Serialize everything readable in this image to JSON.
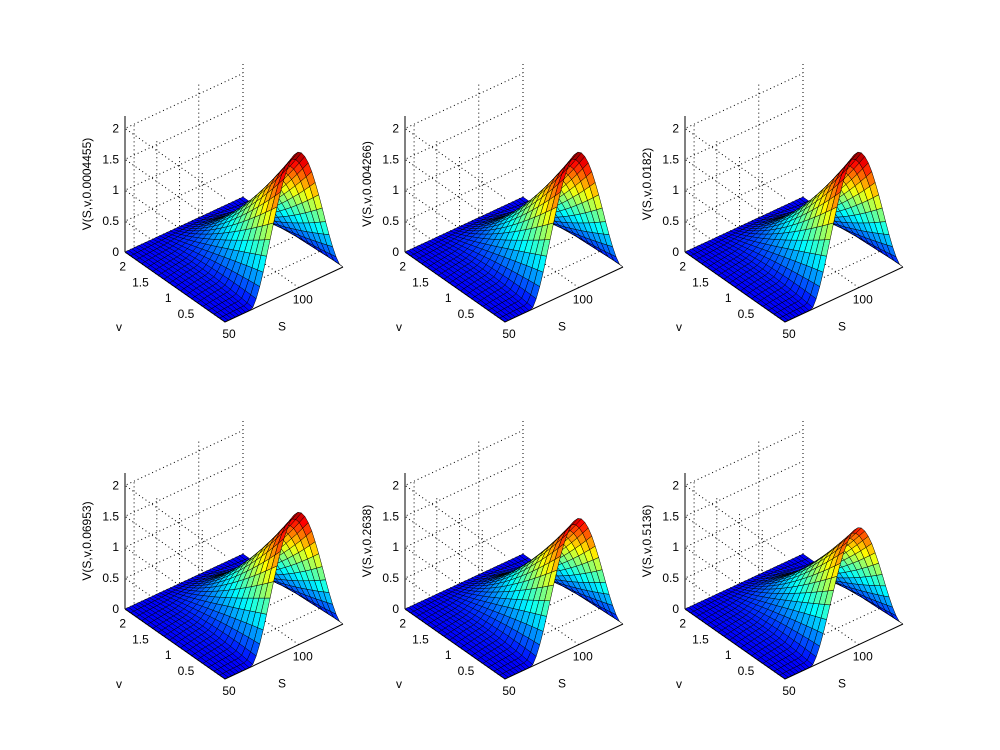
{
  "chart_data": [
    {
      "type": "surface3d",
      "zlabel": "V(S,v,0.0004455)",
      "xlabel": "S",
      "ylabel": "v",
      "x_ticks": [
        "50",
        "100"
      ],
      "y_ticks": [
        "0.5",
        "1",
        "1.5",
        "2"
      ],
      "z_ticks": [
        "0",
        "0.5",
        "1",
        "1.5",
        "2"
      ],
      "xlim": [
        50,
        130
      ],
      "ylim": [
        0,
        2.2
      ],
      "zlim": [
        0,
        2.2
      ],
      "peak": 2.2,
      "colormap": "jet"
    },
    {
      "type": "surface3d",
      "zlabel": "V(S,v,0.004266)",
      "xlabel": "S",
      "ylabel": "v",
      "x_ticks": [
        "50",
        "100"
      ],
      "y_ticks": [
        "0.5",
        "1",
        "1.5",
        "2"
      ],
      "z_ticks": [
        "0",
        "0.5",
        "1",
        "1.5",
        "2"
      ],
      "xlim": [
        50,
        130
      ],
      "ylim": [
        0,
        2.2
      ],
      "zlim": [
        0,
        2.2
      ],
      "peak": 2.2,
      "colormap": "jet"
    },
    {
      "type": "surface3d",
      "zlabel": "V(S,v,0.0182)",
      "xlabel": "S",
      "ylabel": "v",
      "x_ticks": [
        "50",
        "100"
      ],
      "y_ticks": [
        "0.5",
        "1",
        "1.5",
        "2"
      ],
      "z_ticks": [
        "0",
        "0.5",
        "1",
        "1.5",
        "2"
      ],
      "xlim": [
        50,
        130
      ],
      "ylim": [
        0,
        2.2
      ],
      "zlim": [
        0,
        2.2
      ],
      "peak": 2.2,
      "colormap": "jet"
    },
    {
      "type": "surface3d",
      "zlabel": "V(S,v,0.06953)",
      "xlabel": "S",
      "ylabel": "v",
      "x_ticks": [
        "50",
        "100"
      ],
      "y_ticks": [
        "0.5",
        "1",
        "1.5",
        "2"
      ],
      "z_ticks": [
        "0",
        "0.5",
        "1",
        "1.5",
        "2"
      ],
      "xlim": [
        50,
        130
      ],
      "ylim": [
        0,
        2.2
      ],
      "zlim": [
        0,
        2.2
      ],
      "peak": 2.15,
      "colormap": "jet"
    },
    {
      "type": "surface3d",
      "zlabel": "V(S,v,0.2638)",
      "xlabel": "S",
      "ylabel": "v",
      "x_ticks": [
        "50",
        "100"
      ],
      "y_ticks": [
        "0.5",
        "1",
        "1.5",
        "2"
      ],
      "z_ticks": [
        "0",
        "0.5",
        "1",
        "1.5",
        "2"
      ],
      "xlim": [
        50,
        130
      ],
      "ylim": [
        0,
        2.2
      ],
      "zlim": [
        0,
        2.2
      ],
      "peak": 2.05,
      "colormap": "jet"
    },
    {
      "type": "surface3d",
      "zlabel": "V(S,v,0.5136)",
      "xlabel": "S",
      "ylabel": "v",
      "x_ticks": [
        "50",
        "100"
      ],
      "y_ticks": [
        "0.5",
        "1",
        "1.5",
        "2"
      ],
      "z_ticks": [
        "0",
        "0.5",
        "1",
        "1.5",
        "2"
      ],
      "xlim": [
        50,
        130
      ],
      "ylim": [
        0,
        2.2
      ],
      "zlim": [
        0,
        2.2
      ],
      "peak": 1.9,
      "colormap": "jet"
    }
  ]
}
